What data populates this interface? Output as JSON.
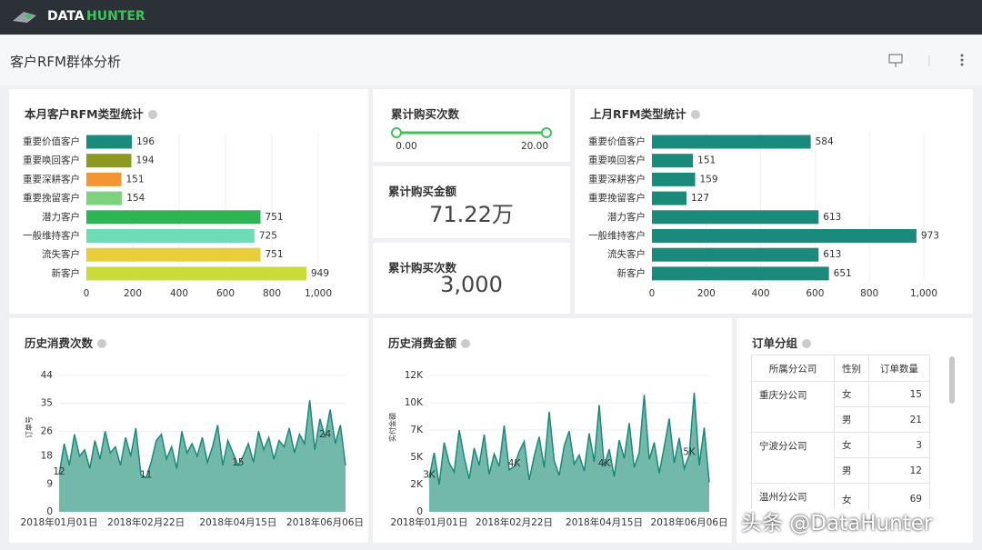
{
  "header": {
    "brand_a": "DATA",
    "brand_b": "HUNTER"
  },
  "page_title": "客户RFM群体分析",
  "filter": {
    "title": "累计购买次数",
    "min": "0.00",
    "max": "20.00"
  },
  "kpis": [
    {
      "title": "累计购买金额",
      "value": "71.22万"
    },
    {
      "title": "累计购买次数",
      "value": "3,000"
    }
  ],
  "chart_data": [
    {
      "type": "hbar",
      "title": "本月客户RFM类型统计",
      "categories": [
        "重要价值客户",
        "重要唤回客户",
        "重要深耕客户",
        "重要挽留客户",
        "潜力客户",
        "一般维持客户",
        "流失客户",
        "新客户"
      ],
      "values": [
        196,
        194,
        151,
        154,
        751,
        725,
        751,
        949
      ],
      "colors": [
        "#1a8a7a",
        "#8c9a1f",
        "#f59432",
        "#7dd37e",
        "#2db553",
        "#6fdcb8",
        "#e8cf3a",
        "#c9dc3a"
      ],
      "xlim": [
        0,
        1000
      ],
      "xticks": [
        0,
        200,
        400,
        600,
        800,
        {
          "value": 1000,
          "label": "1,000"
        }
      ],
      "grid": true
    },
    {
      "type": "hbar",
      "title": "上月RFM类型统计",
      "categories": [
        "重要价值客户",
        "重要唤回客户",
        "重要深耕客户",
        "重要挽留客户",
        "潜力客户",
        "一般维持客户",
        "流失客户",
        "新客户"
      ],
      "values": [
        584,
        151,
        159,
        127,
        613,
        973,
        613,
        651
      ],
      "color": "#1a8a7a",
      "xlim": [
        0,
        1000
      ],
      "xticks": [
        0,
        200,
        400,
        600,
        800,
        {
          "value": 1000,
          "label": "1,000"
        }
      ],
      "grid": true
    },
    {
      "type": "area",
      "title": "历史消费次数",
      "ylabel": "订单号",
      "color": "#1a8a7a",
      "fill": "#72b9aa",
      "categories": [
        "2018年01月01日",
        null,
        null,
        null,
        null,
        null,
        null,
        null,
        null,
        null,
        null,
        null,
        null,
        null,
        null,
        null,
        null,
        "2018年02月22日",
        null,
        null,
        null,
        null,
        null,
        null,
        null,
        null,
        null,
        null,
        null,
        null,
        null,
        null,
        null,
        null,
        null,
        "2018年04月15日",
        null,
        null,
        null,
        null,
        null,
        null,
        null,
        null,
        null,
        null,
        null,
        null,
        null,
        null,
        null,
        null,
        "2018年06月06日",
        null,
        null,
        null,
        null
      ],
      "values": [
        12,
        22,
        15,
        25,
        18,
        20,
        14,
        23,
        17,
        26,
        19,
        21,
        15,
        24,
        18,
        27,
        12,
        11,
        16,
        23,
        25,
        17,
        21,
        14,
        26,
        19,
        22,
        18,
        24,
        16,
        21,
        28,
        15,
        23,
        19,
        15,
        18,
        22,
        16,
        26,
        20,
        24,
        17,
        23,
        21,
        27,
        19,
        25,
        22,
        36,
        20,
        30,
        24,
        33,
        22,
        28,
        15
      ],
      "value_labels": [
        "12",
        null,
        null,
        null,
        null,
        null,
        null,
        null,
        null,
        null,
        null,
        null,
        null,
        null,
        null,
        null,
        null,
        "11",
        null,
        null,
        null,
        null,
        null,
        null,
        null,
        null,
        null,
        null,
        null,
        null,
        null,
        null,
        null,
        null,
        null,
        "15",
        null,
        null,
        null,
        null,
        null,
        null,
        null,
        null,
        null,
        null,
        null,
        null,
        null,
        null,
        null,
        null,
        "24",
        null,
        null,
        null,
        null
      ],
      "ylim": [
        0,
        44
      ],
      "yticks": [
        0,
        9,
        18,
        26,
        35,
        44
      ],
      "grid": true
    },
    {
      "type": "area",
      "title": "历史消费金额",
      "ylabel": "实付金额",
      "color": "#1a8a7a",
      "fill": "#72b9aa",
      "categories": [
        "2018年01月01日",
        null,
        null,
        null,
        null,
        null,
        null,
        null,
        null,
        null,
        null,
        null,
        null,
        null,
        null,
        null,
        null,
        "2018年02月22日",
        null,
        null,
        null,
        null,
        null,
        null,
        null,
        null,
        null,
        null,
        null,
        null,
        null,
        null,
        null,
        null,
        null,
        "2018年04月15日",
        null,
        null,
        null,
        null,
        null,
        null,
        null,
        null,
        null,
        null,
        null,
        null,
        null,
        null,
        null,
        null,
        "2018年06月06日",
        null,
        null,
        null,
        null
      ],
      "values": [
        3000,
        5200,
        2400,
        6100,
        4300,
        3500,
        7200,
        4800,
        2900,
        5600,
        4100,
        6800,
        3300,
        5100,
        4000,
        7600,
        3700,
        4000,
        5300,
        6200,
        2800,
        4900,
        6600,
        3900,
        8800,
        4500,
        3200,
        5800,
        7100,
        4200,
        5000,
        3600,
        6900,
        4400,
        9400,
        4000,
        5500,
        3100,
        6300,
        4700,
        7800,
        3900,
        5200,
        10300,
        4600,
        6100,
        3400,
        5700,
        8200,
        4300,
        6500,
        3800,
        5000,
        10500,
        4100,
        7400,
        2600
      ],
      "value_labels": [
        "3K",
        null,
        null,
        null,
        null,
        null,
        null,
        null,
        null,
        null,
        null,
        null,
        null,
        null,
        null,
        null,
        null,
        "4K",
        null,
        null,
        null,
        null,
        null,
        null,
        null,
        null,
        null,
        null,
        null,
        null,
        null,
        null,
        null,
        null,
        null,
        "4K",
        null,
        null,
        null,
        null,
        null,
        null,
        null,
        null,
        null,
        null,
        null,
        null,
        null,
        null,
        null,
        null,
        "5K",
        null,
        null,
        null,
        null
      ],
      "ylim": [
        0,
        12000
      ],
      "yticks": [
        0,
        {
          "value": 2400,
          "label": "2K"
        },
        {
          "value": 4800,
          "label": "5K"
        },
        {
          "value": 7200,
          "label": "7K"
        },
        {
          "value": 9600,
          "label": "10K"
        },
        {
          "value": 12000,
          "label": "12K"
        }
      ],
      "grid": true
    }
  ],
  "table": {
    "title": "订单分组",
    "columns": [
      "所属分公司",
      "性别",
      "订单数量"
    ],
    "groups": [
      {
        "branch": "重庆分公司",
        "rows": [
          [
            "女",
            "15"
          ],
          [
            "男",
            "21"
          ]
        ]
      },
      {
        "branch": "宁波分公司",
        "rows": [
          [
            "女",
            "3"
          ],
          [
            "男",
            "12"
          ]
        ]
      },
      {
        "branch": "温州分公司",
        "rows": [
          [
            "女",
            "69"
          ]
        ]
      }
    ]
  },
  "watermark": "头条 @DataHunter"
}
